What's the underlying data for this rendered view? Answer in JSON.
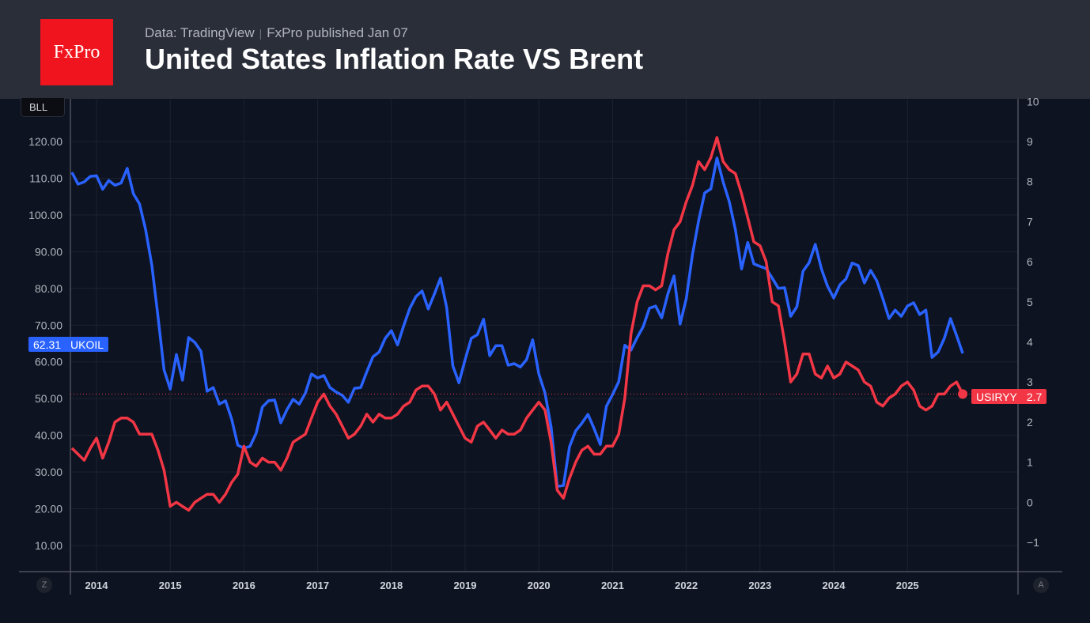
{
  "header": {
    "logo_text": "FxPro",
    "source": "Data: TradingView",
    "separator": "|",
    "published": "FxPro published Jan 07",
    "title": "United States Inflation Rate VS Brent"
  },
  "controls": {
    "unit_label": "BLL",
    "left_button": "Z",
    "right_button": "A"
  },
  "colors": {
    "ukoil": "#2962ff",
    "usiryy": "#f23645",
    "background": "#0d1320",
    "header": "#2a2e39"
  },
  "chart_data": {
    "type": "line",
    "title": "United States Inflation Rate VS Brent",
    "x_ticks": [
      "2014",
      "2015",
      "2016",
      "2017",
      "2018",
      "2019",
      "2020",
      "2021",
      "2022",
      "2023",
      "2024",
      "2025"
    ],
    "left_axis": {
      "ticks": [
        "120.00",
        "110.00",
        "100.00",
        "90.00",
        "80.00",
        "70.00",
        "60.00",
        "50.00",
        "40.00",
        "30.00",
        "20.00",
        "10.00"
      ],
      "range": [
        5,
        130
      ]
    },
    "right_axis": {
      "ticks": [
        "10",
        "9",
        "8",
        "7",
        "6",
        "5",
        "4",
        "3",
        "2",
        "1",
        "0",
        "−1"
      ],
      "range": [
        -1.9,
        10.2
      ]
    },
    "grid": true,
    "series": [
      {
        "name": "UKOIL",
        "axis": "left",
        "last_value": "62.31",
        "color": "#2962ff",
        "monthly": {
          "2013": [
            null,
            null,
            null,
            null,
            null,
            null,
            null,
            null,
            111.6,
            108.4,
            109,
            110.5
          ],
          "2014": [
            110.7,
            107,
            109.4,
            108.1,
            108.7,
            112.7,
            105.8,
            103,
            96,
            86.4,
            72.4,
            57.8
          ],
          "2015": [
            52.6,
            62,
            55,
            66.6,
            65.3,
            62.9,
            52,
            53,
            48.5,
            49.4,
            44.4,
            37.3
          ],
          "2016": [
            36.5,
            37,
            40.6,
            47.7,
            49.4,
            49.6,
            43.4,
            47,
            49.8,
            48.5,
            51.5,
            56.7
          ],
          "2017": [
            55.6,
            56.3,
            53,
            51.8,
            50.9,
            49,
            52.8,
            53,
            57.3,
            61.4,
            62.7,
            66.4
          ],
          "2018": [
            68.5,
            64.6,
            69.8,
            74.6,
            77.8,
            79.3,
            74.4,
            78.5,
            82.8,
            74.8,
            58.9,
            54.3
          ],
          "2019": [
            60.6,
            66.4,
            67.4,
            71.6,
            61.7,
            64.4,
            64.4,
            59.1,
            59.5,
            58.6,
            60.6,
            66
          ],
          "2020": [
            56.7,
            51.5,
            42.3,
            26.1,
            26.3,
            36.9,
            41.2,
            43.3,
            45.7,
            41.8,
            37.5,
            47.9
          ],
          "2021": [
            51.1,
            54.6,
            64.5,
            63.2,
            66.6,
            69.6,
            74.6,
            75.2,
            72,
            78.5,
            83.4,
            70.3
          ],
          "2022": [
            77.2,
            89.2,
            98.3,
            106,
            107.1,
            115.5,
            109,
            103.6,
            96,
            85.3,
            92.5,
            86.7
          ],
          "2023": [
            86,
            85.4,
            82.8,
            80,
            80.2,
            72.4,
            75,
            84.7,
            87,
            92,
            85.3,
            80.6
          ],
          "2024": [
            77.4,
            81,
            82.6,
            86.9,
            86.2,
            81.5,
            84.9,
            82.1,
            77.2,
            71.8,
            74.1,
            72.4
          ],
          "2025": [
            75.2,
            76.1,
            72.9,
            74.1,
            61.2,
            62.7,
            66.4,
            71.8,
            67.2,
            62.3,
            null,
            null
          ]
        }
      },
      {
        "name": "USIRYY",
        "axis": "right",
        "last_value": "2.7",
        "color": "#f23645",
        "monthly": {
          "2013": [
            null,
            null,
            null,
            null,
            null,
            null,
            null,
            null,
            1.35,
            1.2,
            1.05,
            1.35
          ],
          "2014": [
            1.6,
            1.1,
            1.5,
            2.0,
            2.1,
            2.1,
            2.0,
            1.7,
            1.7,
            1.7,
            1.3,
            0.8
          ],
          "2015": [
            -0.1,
            0.0,
            -0.1,
            -0.2,
            0.0,
            0.1,
            0.2,
            0.2,
            0.0,
            0.2,
            0.5,
            0.7
          ],
          "2016": [
            1.4,
            1.0,
            0.9,
            1.1,
            1.0,
            1.0,
            0.8,
            1.1,
            1.5,
            1.6,
            1.7,
            2.1
          ],
          "2017": [
            2.5,
            2.7,
            2.4,
            2.2,
            1.9,
            1.6,
            1.7,
            1.9,
            2.2,
            2.0,
            2.2,
            2.1
          ],
          "2018": [
            2.1,
            2.2,
            2.4,
            2.5,
            2.8,
            2.9,
            2.9,
            2.7,
            2.3,
            2.5,
            2.2,
            1.9
          ],
          "2019": [
            1.6,
            1.5,
            1.9,
            2.0,
            1.8,
            1.6,
            1.8,
            1.7,
            1.7,
            1.8,
            2.1,
            2.3
          ],
          "2020": [
            2.5,
            2.3,
            1.5,
            0.3,
            0.1,
            0.6,
            1.0,
            1.3,
            1.4,
            1.2,
            1.2,
            1.4
          ],
          "2021": [
            1.4,
            1.7,
            2.6,
            4.2,
            5.0,
            5.4,
            5.4,
            5.3,
            5.4,
            6.2,
            6.8,
            7.0
          ],
          "2022": [
            7.5,
            7.9,
            8.5,
            8.3,
            8.6,
            9.1,
            8.5,
            8.3,
            8.2,
            7.7,
            7.1,
            6.5
          ],
          "2023": [
            6.4,
            6.0,
            5.0,
            4.9,
            4.0,
            3.0,
            3.2,
            3.7,
            3.7,
            3.2,
            3.1,
            3.4
          ],
          "2024": [
            3.1,
            3.2,
            3.5,
            3.4,
            3.3,
            3.0,
            2.9,
            2.5,
            2.4,
            2.6,
            2.7,
            2.9
          ],
          "2025": [
            3.0,
            2.8,
            2.4,
            2.3,
            2.4,
            2.7,
            2.7,
            2.9,
            3.0,
            2.7,
            null,
            null
          ]
        }
      }
    ]
  }
}
